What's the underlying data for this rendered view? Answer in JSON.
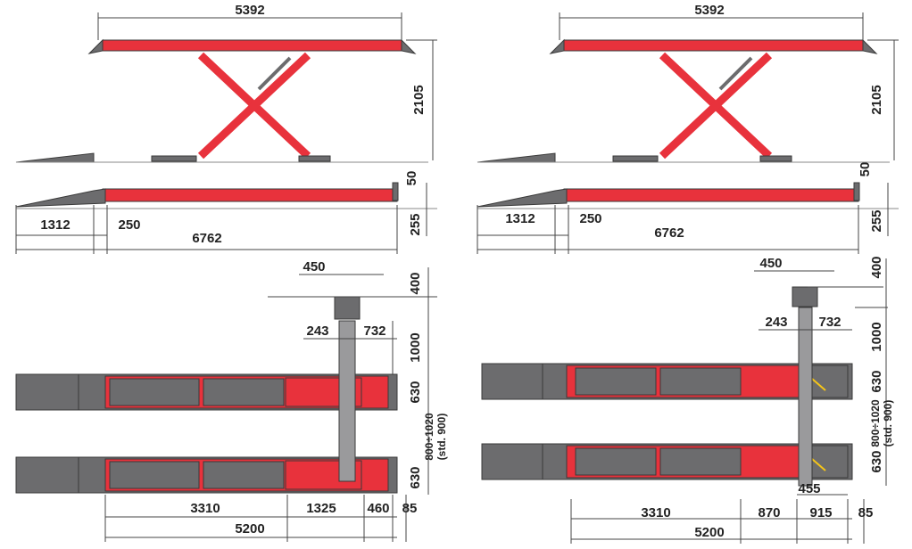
{
  "left": {
    "raised_length": "5392",
    "raised_height": "2105",
    "lowered_height": "50",
    "lowered_base": "255",
    "ramp_length": "1312",
    "ramp_gap": "250",
    "total_length": "6762",
    "console_width": "450",
    "console_offset": "400",
    "column_left": "243",
    "column_right": "732",
    "column_height": "1000",
    "platform_width_top": "630",
    "track_range": "800÷1020",
    "track_std": "(std. 900)",
    "platform_width_bottom": "630",
    "plate_length": "3310",
    "red_length": "1325",
    "end_length": "460",
    "end_offset": "85",
    "platform_length": "5200"
  },
  "right": {
    "raised_length": "5392",
    "raised_height": "2105",
    "lowered_height": "50",
    "lowered_base": "255",
    "ramp_length": "1312",
    "ramp_gap": "250",
    "total_length": "6762",
    "console_width": "450",
    "console_offset": "400",
    "column_left": "243",
    "column_right": "732",
    "column_height": "1000",
    "platform_width_top": "630",
    "track_range": "800÷1020",
    "track_std": "(std. 900)",
    "platform_width_bottom": "630",
    "jack_width": "455",
    "plate_length": "3310",
    "mid_length": "870",
    "jack_length": "915",
    "end_offset": "85",
    "platform_length": "5200"
  }
}
